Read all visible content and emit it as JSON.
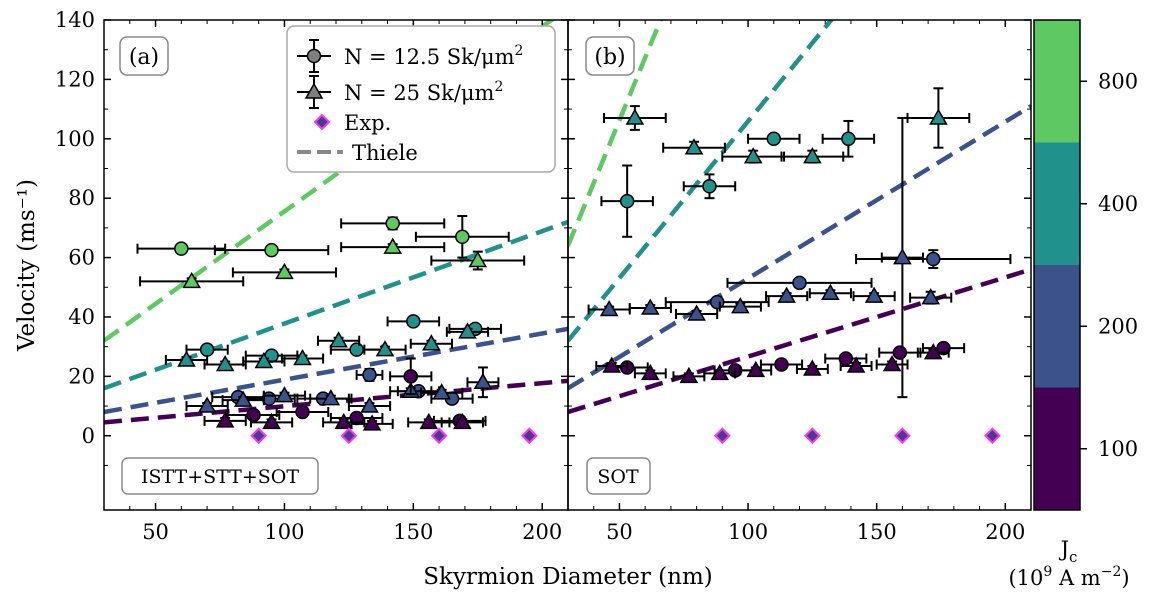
{
  "chart_data": [
    {
      "type": "scatter",
      "panel_label": "(a)",
      "method_label": "ISTT+STT+SOT",
      "xlabel": "Skyrmion Diameter (nm)",
      "ylabel": "Velocity (ms⁻¹)",
      "xlim": [
        30,
        210
      ],
      "ylim": [
        -25,
        140
      ],
      "xticks": [
        50,
        100,
        150,
        200
      ],
      "yticks": [
        0,
        20,
        40,
        60,
        80,
        100,
        120,
        140
      ],
      "legend": {
        "placement": "top-center",
        "entries": [
          {
            "marker": "circle",
            "text_main": "N = 12.5 Sk/μm",
            "text_sup": "2"
          },
          {
            "marker": "triangle",
            "text_main": "N = 25 Sk/μm",
            "text_sup": "2"
          },
          {
            "marker": "diamond",
            "text_main": "Exp.",
            "text_sup": ""
          },
          {
            "marker": "dashed-line",
            "text_main": "Thiele",
            "text_sup": ""
          }
        ]
      },
      "series": [
        {
          "name": "N = 12.5 Sk/μm²",
          "marker": "circle",
          "jc": 800,
          "x": [
            60,
            95,
            142,
            169
          ],
          "y": [
            63,
            62.5,
            71.5,
            67
          ],
          "xerr": [
            17,
            22,
            20,
            18
          ],
          "yerr": [
            1,
            1,
            2,
            7
          ]
        },
        {
          "name": "N = 25 Sk/μm²",
          "marker": "triangle",
          "jc": 800,
          "x": [
            64,
            100,
            142,
            175
          ],
          "y": [
            52,
            55,
            63.5,
            59
          ],
          "xerr": [
            20,
            20,
            20,
            18
          ],
          "yerr": [
            1,
            1,
            1,
            3
          ]
        },
        {
          "name": "N = 12.5 Sk/μm²",
          "marker": "circle",
          "jc": 400,
          "x": [
            70,
            95,
            128,
            150,
            174
          ],
          "y": [
            29,
            27,
            29,
            38.5,
            36
          ],
          "xerr": [
            8,
            10,
            10,
            10,
            10
          ],
          "yerr": [
            1,
            1,
            1,
            1,
            1
          ]
        },
        {
          "name": "N = 25 Sk/μm²",
          "marker": "triangle",
          "jc": 400,
          "x": [
            62,
            77,
            92,
            107,
            121,
            139,
            157,
            171
          ],
          "y": [
            25.5,
            24,
            25,
            26,
            32,
            29,
            31,
            35
          ],
          "xerr": [
            8,
            8,
            8,
            8,
            8,
            8,
            8,
            8
          ],
          "yerr": [
            1,
            1,
            1,
            1,
            1,
            1,
            1,
            1
          ]
        },
        {
          "name": "N = 12.5 Sk/μm²",
          "marker": "circle",
          "jc": 200,
          "x": [
            82,
            94,
            115,
            133,
            152,
            165
          ],
          "y": [
            13,
            12.5,
            12.5,
            20.5,
            15,
            12.5
          ],
          "xerr": [
            10,
            10,
            10,
            5,
            8,
            8
          ],
          "yerr": [
            1,
            1,
            1,
            2,
            1,
            1
          ]
        },
        {
          "name": "N = 25 Sk/μm²",
          "marker": "triangle",
          "jc": 200,
          "x": [
            70,
            84,
            100,
            118,
            133,
            149,
            161,
            177
          ],
          "y": [
            10,
            12,
            13.5,
            12.5,
            10,
            15,
            14.5,
            18
          ],
          "xerr": [
            8,
            8,
            8,
            8,
            8,
            8,
            8,
            6
          ],
          "yerr": [
            1,
            1,
            1,
            1,
            1,
            1,
            1,
            5
          ]
        },
        {
          "name": "N = 12.5 Sk/μm²",
          "marker": "circle",
          "jc": 100,
          "x": [
            88,
            107,
            128,
            149,
            168
          ],
          "y": [
            7,
            8,
            6,
            20,
            5
          ],
          "xerr": [
            10,
            10,
            10,
            8,
            10
          ],
          "yerr": [
            1,
            1,
            1,
            6,
            1
          ]
        },
        {
          "name": "N = 25 Sk/μm²",
          "marker": "triangle",
          "jc": 100,
          "x": [
            77,
            95,
            123,
            134,
            156,
            169
          ],
          "y": [
            5,
            4.5,
            4.5,
            4,
            4.5,
            4.5
          ],
          "xerr": [
            8,
            8,
            8,
            8,
            8,
            8
          ],
          "yerr": [
            1,
            1,
            1,
            1,
            1,
            1
          ]
        },
        {
          "name": "Exp.",
          "marker": "diamond",
          "x": [
            90,
            125,
            160,
            195
          ],
          "y": [
            0,
            0,
            0,
            0
          ]
        }
      ],
      "thiele": [
        {
          "jc": 100,
          "x0": 30,
          "y0": 4.5,
          "x1": 210,
          "y1": 18.5
        },
        {
          "jc": 200,
          "x0": 30,
          "y0": 8,
          "x1": 210,
          "y1": 36
        },
        {
          "jc": 400,
          "x0": 30,
          "y0": 16,
          "x1": 210,
          "y1": 72
        },
        {
          "jc": 800,
          "x0": 30,
          "y0": 32,
          "x1": 210,
          "y1": 144
        }
      ]
    },
    {
      "type": "scatter",
      "panel_label": "(b)",
      "method_label": "SOT",
      "xlabel": "Skyrmion Diameter (nm)",
      "xlim": [
        30,
        210
      ],
      "ylim": [
        -25,
        140
      ],
      "xticks": [
        50,
        100,
        150,
        200
      ],
      "series": [
        {
          "name": "N = 12.5 Sk/μm²",
          "marker": "circle",
          "jc": 800,
          "x": [],
          "y": []
        },
        {
          "name": "N = 12.5 Sk/μm²",
          "marker": "circle",
          "jc": 400,
          "x": [
            53,
            85,
            110,
            139
          ],
          "y": [
            79,
            84,
            100,
            100
          ],
          "xerr": [
            10,
            10,
            10,
            10
          ],
          "yerr": [
            12,
            4,
            1,
            6
          ]
        },
        {
          "name": "N = 25 Sk/μm²",
          "marker": "triangle",
          "jc": 400,
          "x": [
            56,
            79,
            102,
            125,
            174
          ],
          "y": [
            107,
            97,
            94,
            94,
            107
          ],
          "xerr": [
            12,
            12,
            12,
            12,
            12
          ],
          "yerr": [
            4,
            2,
            2,
            2,
            10
          ]
        },
        {
          "name": "N = 12.5 Sk/μm²",
          "marker": "circle",
          "jc": 200,
          "x": [
            88,
            120,
            172
          ],
          "y": [
            45,
            51.5,
            59.5
          ],
          "xerr": [
            20,
            28,
            30
          ],
          "yerr": [
            1,
            1,
            3
          ]
        },
        {
          "name": "N = 25 Sk/μm²",
          "marker": "triangle",
          "jc": 200,
          "x": [
            46,
            62,
            80,
            97,
            115,
            132,
            149,
            160,
            171
          ],
          "y": [
            42.5,
            43,
            41,
            43.5,
            47,
            48,
            47,
            60,
            46.5
          ],
          "xerr": [
            8,
            8,
            8,
            8,
            8,
            8,
            8,
            8,
            8
          ],
          "yerr": [
            1,
            1,
            1,
            1,
            1,
            1,
            1,
            47,
            2
          ]
        },
        {
          "name": "N = 12.5 Sk/μm²",
          "marker": "circle",
          "jc": 100,
          "x": [
            53,
            95,
            113,
            138,
            159,
            176
          ],
          "y": [
            23,
            22,
            24,
            26,
            28,
            29.5
          ],
          "xerr": [
            8,
            8,
            8,
            8,
            8,
            8
          ],
          "yerr": [
            1,
            1,
            1,
            1,
            1,
            1
          ]
        },
        {
          "name": "N = 25 Sk/μm²",
          "marker": "triangle",
          "jc": 100,
          "x": [
            47,
            62,
            77,
            89,
            103,
            125,
            142,
            156,
            172
          ],
          "y": [
            23.5,
            21,
            20,
            21,
            22,
            22.5,
            23.5,
            24,
            28
          ],
          "xerr": [
            6,
            6,
            6,
            6,
            6,
            6,
            6,
            6,
            6
          ],
          "yerr": [
            1,
            1,
            1,
            1,
            1,
            1,
            1,
            1,
            1
          ]
        },
        {
          "name": "Exp.",
          "marker": "diamond",
          "x": [
            90,
            125,
            160,
            195
          ],
          "y": [
            0,
            0,
            0,
            0
          ]
        }
      ],
      "thiele": [
        {
          "jc": 100,
          "x0": 30,
          "y0": 8,
          "x1": 210,
          "y1": 56
        },
        {
          "jc": 200,
          "x0": 30,
          "y0": 16,
          "x1": 210,
          "y1": 111
        },
        {
          "jc": 400,
          "x0": 30,
          "y0": 32,
          "x1": 210,
          "y1": 222
        },
        {
          "jc": 800,
          "x0": 30,
          "y0": 64,
          "x1": 210,
          "y1": 444
        }
      ]
    }
  ],
  "colorbar": {
    "title": "J",
    "title_sub": "c",
    "units_main": "(10",
    "units_exp": "9",
    "units_mid": " A m",
    "units_exp2": "−2",
    "units_end": ")",
    "levels": [
      {
        "label": "800",
        "color": "#5ec962"
      },
      {
        "label": "400",
        "color": "#21918c"
      },
      {
        "label": "200",
        "color": "#3b528b"
      },
      {
        "label": "100",
        "color": "#440154"
      }
    ]
  },
  "colors": {
    "jc_100": "#440154",
    "jc_200": "#3b528b",
    "jc_400": "#21918c",
    "jc_800": "#5ec962",
    "exp_fill": "#4b3b8c",
    "exp_edge": "#ff33ff",
    "thiele_legend": "#888888"
  }
}
